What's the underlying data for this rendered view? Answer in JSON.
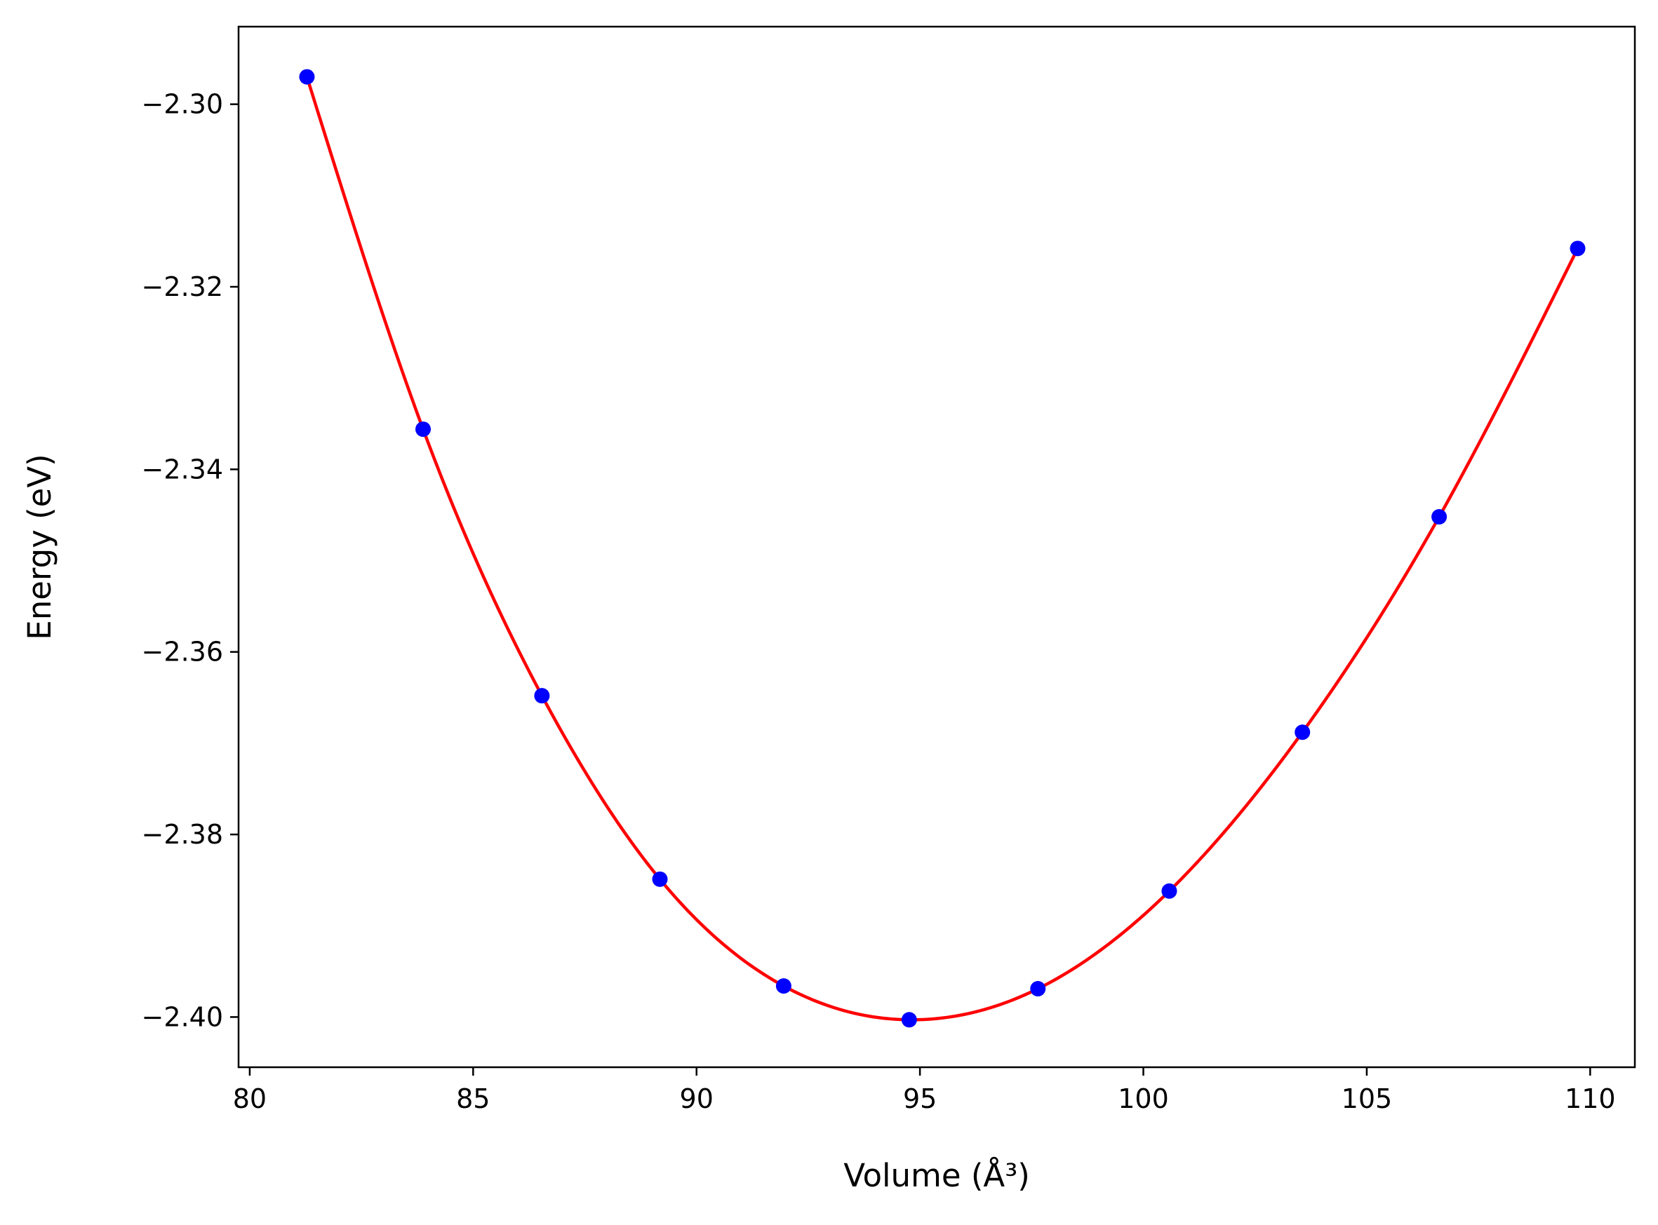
{
  "chart_data": {
    "type": "scatter",
    "xlabel": "Volume (Å³)",
    "ylabel": "Energy (eV)",
    "xlim": [
      79.75,
      111.0
    ],
    "ylim": [
      -2.4055,
      -2.2915
    ],
    "grid": false,
    "legend": "none",
    "x_ticks": [
      80,
      85,
      90,
      95,
      100,
      105,
      110
    ],
    "x_tick_labels": [
      "80",
      "85",
      "90",
      "95",
      "100",
      "105",
      "110"
    ],
    "y_ticks": [
      -2.3,
      -2.32,
      -2.34,
      -2.36,
      -2.38,
      -2.4
    ],
    "y_tick_labels": [
      "−2.30",
      "−2.32",
      "−2.34",
      "−2.36",
      "−2.38",
      "−2.40"
    ],
    "series": [
      {
        "kind": "markers",
        "color": "#0000ff",
        "points": [
          [
            81.28,
            -2.297
          ],
          [
            83.88,
            -2.3356
          ],
          [
            86.54,
            -2.3648
          ],
          [
            89.18,
            -2.3849
          ],
          [
            91.95,
            -2.3966
          ],
          [
            94.76,
            -2.4003
          ],
          [
            97.64,
            -2.3969
          ],
          [
            100.58,
            -2.3862
          ],
          [
            103.56,
            -2.3688
          ],
          [
            106.62,
            -2.3452
          ],
          [
            109.72,
            -2.3158
          ]
        ]
      },
      {
        "kind": "fitted-curve",
        "color": "#ff0000",
        "x_range": [
          81.28,
          109.72
        ]
      }
    ]
  }
}
